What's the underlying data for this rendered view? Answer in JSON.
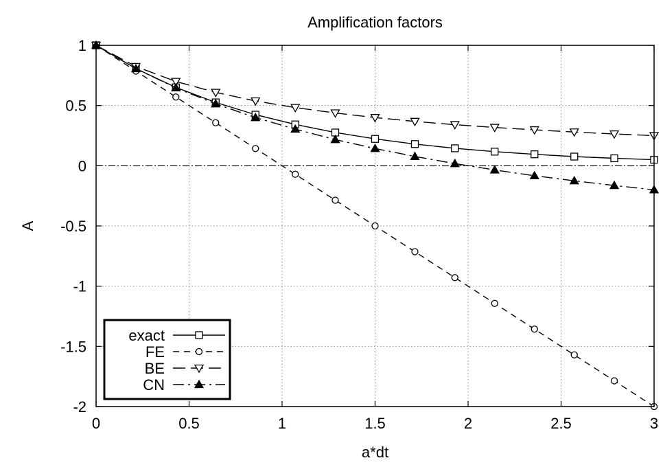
{
  "chart_data": {
    "type": "line",
    "title": "Amplification factors",
    "xlabel": "a*dt",
    "ylabel": "A",
    "xlim": [
      0,
      3
    ],
    "ylim": [
      -2,
      1
    ],
    "xticks": [
      0,
      0.5,
      1,
      1.5,
      2,
      2.5,
      3
    ],
    "xtick_labels": [
      "0",
      "0.5",
      "1",
      "1.5",
      "2",
      "2.5",
      "3"
    ],
    "yticks": [
      -2,
      -1.5,
      -1,
      -0.5,
      0,
      0.5,
      1
    ],
    "ytick_labels": [
      "-2",
      "-1.5",
      "-1",
      "-0.5",
      "0",
      "0.5",
      "1"
    ],
    "grid": true,
    "legend_position": "bottom-left",
    "zero_line": true,
    "series": [
      {
        "name": "exact",
        "marker": "square",
        "dash": "solid",
        "x": [
          0,
          0.214,
          0.429,
          0.643,
          0.857,
          1.071,
          1.286,
          1.5,
          1.714,
          1.929,
          2.143,
          2.357,
          2.571,
          2.786,
          3.0
        ],
        "y": [
          1.0,
          0.807,
          0.651,
          0.526,
          0.424,
          0.343,
          0.276,
          0.223,
          0.18,
          0.145,
          0.117,
          0.095,
          0.076,
          0.062,
          0.05
        ]
      },
      {
        "name": "FE",
        "marker": "circle",
        "dash": "dashed",
        "x": [
          0,
          0.214,
          0.429,
          0.643,
          0.857,
          1.071,
          1.286,
          1.5,
          1.714,
          1.929,
          2.143,
          2.357,
          2.571,
          2.786,
          3.0
        ],
        "y": [
          1.0,
          0.786,
          0.571,
          0.357,
          0.143,
          -0.071,
          -0.286,
          -0.5,
          -0.714,
          -0.929,
          -1.143,
          -1.357,
          -1.571,
          -1.786,
          -2.0
        ]
      },
      {
        "name": "BE",
        "marker": "triangle-down",
        "dash": "long-dash",
        "x": [
          0,
          0.214,
          0.429,
          0.643,
          0.857,
          1.071,
          1.286,
          1.5,
          1.714,
          1.929,
          2.143,
          2.357,
          2.571,
          2.786,
          3.0
        ],
        "y": [
          1.0,
          0.824,
          0.7,
          0.609,
          0.538,
          0.483,
          0.438,
          0.4,
          0.368,
          0.341,
          0.318,
          0.298,
          0.28,
          0.264,
          0.25
        ]
      },
      {
        "name": "CN",
        "marker": "triangle-up",
        "dash": "dash-dot",
        "x": [
          0,
          0.214,
          0.429,
          0.643,
          0.857,
          1.071,
          1.286,
          1.5,
          1.714,
          1.929,
          2.143,
          2.357,
          2.571,
          2.786,
          3.0
        ],
        "y": [
          1.0,
          0.806,
          0.647,
          0.514,
          0.4,
          0.304,
          0.217,
          0.143,
          0.077,
          0.018,
          -0.035,
          -0.083,
          -0.125,
          -0.164,
          -0.2
        ]
      }
    ]
  }
}
